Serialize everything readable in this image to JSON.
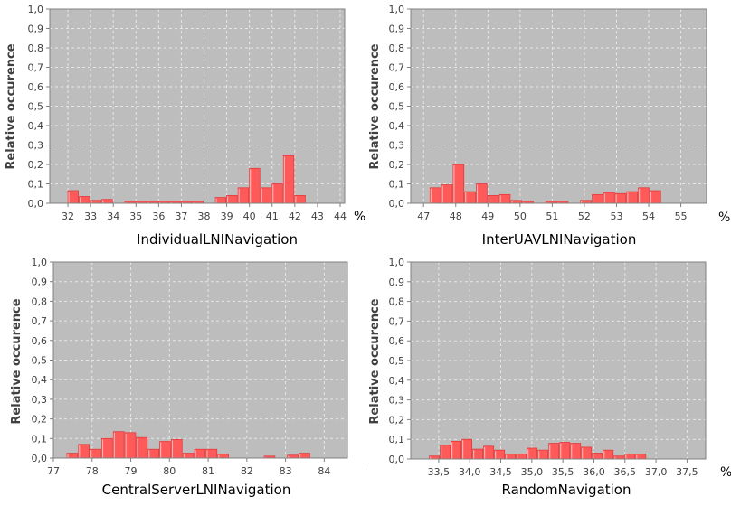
{
  "chart_data": [
    {
      "type": "bar",
      "xlabel": "IndividualLNINavigation",
      "ylabel": "Relative occurence",
      "unit": "%",
      "xlim": [
        31.2,
        44.2
      ],
      "ylim": [
        0,
        1
      ],
      "xticks": [
        "32",
        "33",
        "34",
        "35",
        "36",
        "37",
        "38",
        "39",
        "40",
        "41",
        "42",
        "43",
        "44"
      ],
      "xtick_values": [
        32,
        33,
        34,
        35,
        36,
        37,
        38,
        39,
        40,
        41,
        42,
        43,
        44
      ],
      "yticks": [
        "0,0",
        "0,1",
        "0,2",
        "0,3",
        "0,4",
        "0,5",
        "0,6",
        "0,7",
        "0,8",
        "0,9",
        "1,0"
      ],
      "bin_width": 0.5,
      "bins": [
        {
          "x": 32.0,
          "y": 0.065
        },
        {
          "x": 32.5,
          "y": 0.035
        },
        {
          "x": 33.0,
          "y": 0.015
        },
        {
          "x": 33.5,
          "y": 0.02
        },
        {
          "x": 34.5,
          "y": 0.01
        },
        {
          "x": 35.0,
          "y": 0.01
        },
        {
          "x": 35.5,
          "y": 0.01
        },
        {
          "x": 36.0,
          "y": 0.01
        },
        {
          "x": 36.5,
          "y": 0.01
        },
        {
          "x": 37.0,
          "y": 0.01
        },
        {
          "x": 37.5,
          "y": 0.01
        },
        {
          "x": 38.5,
          "y": 0.03
        },
        {
          "x": 39.0,
          "y": 0.04
        },
        {
          "x": 39.5,
          "y": 0.08
        },
        {
          "x": 40.0,
          "y": 0.18
        },
        {
          "x": 40.5,
          "y": 0.08
        },
        {
          "x": 41.0,
          "y": 0.1
        },
        {
          "x": 41.5,
          "y": 0.245
        },
        {
          "x": 42.0,
          "y": 0.04
        }
      ],
      "bar_color": "#ff5a5a",
      "plot_background": "#bdbdbd",
      "grid": true
    },
    {
      "type": "bar",
      "xlabel": "InterUAVLNINavigation",
      "ylabel": "Relative occurence",
      "unit": "%",
      "xlim": [
        46.6,
        55.8
      ],
      "ylim": [
        0,
        1
      ],
      "xticks": [
        "47",
        "48",
        "49",
        "50",
        "51",
        "52",
        "53",
        "54",
        "55"
      ],
      "xtick_values": [
        47,
        48,
        49,
        50,
        51,
        52,
        53,
        54,
        55
      ],
      "yticks": [
        "0,0",
        "0,1",
        "0,2",
        "0,3",
        "0,4",
        "0,5",
        "0,6",
        "0,7",
        "0,8",
        "0,9",
        "1,0"
      ],
      "bin_width": 0.36,
      "bins": [
        {
          "x": 47.2,
          "y": 0.08
        },
        {
          "x": 47.56,
          "y": 0.095
        },
        {
          "x": 47.92,
          "y": 0.2
        },
        {
          "x": 48.28,
          "y": 0.06
        },
        {
          "x": 48.64,
          "y": 0.1
        },
        {
          "x": 49.0,
          "y": 0.04
        },
        {
          "x": 49.36,
          "y": 0.045
        },
        {
          "x": 49.72,
          "y": 0.015
        },
        {
          "x": 50.08,
          "y": 0.01
        },
        {
          "x": 50.8,
          "y": 0.01
        },
        {
          "x": 51.16,
          "y": 0.01
        },
        {
          "x": 51.88,
          "y": 0.015
        },
        {
          "x": 52.24,
          "y": 0.045
        },
        {
          "x": 52.6,
          "y": 0.055
        },
        {
          "x": 52.96,
          "y": 0.05
        },
        {
          "x": 53.32,
          "y": 0.06
        },
        {
          "x": 53.68,
          "y": 0.08
        },
        {
          "x": 54.04,
          "y": 0.065
        }
      ],
      "bar_color": "#ff5a5a",
      "plot_background": "#bdbdbd",
      "grid": true
    },
    {
      "type": "bar",
      "xlabel": "CentralServerLNINavigation",
      "ylabel": "Relative occurence",
      "unit": "%",
      "xlim": [
        77.0,
        84.6
      ],
      "ylim": [
        0,
        1
      ],
      "xticks": [
        "77",
        "78",
        "79",
        "80",
        "81",
        "82",
        "83",
        "84"
      ],
      "xtick_values": [
        77,
        78,
        79,
        80,
        81,
        82,
        83,
        84
      ],
      "yticks": [
        "0,0",
        "0,1",
        "0,2",
        "0,3",
        "0,4",
        "0,5",
        "0,6",
        "0,7",
        "0,8",
        "0,9",
        "1,0"
      ],
      "bin_width": 0.3,
      "bins": [
        {
          "x": 77.35,
          "y": 0.025
        },
        {
          "x": 77.65,
          "y": 0.07
        },
        {
          "x": 77.95,
          "y": 0.045
        },
        {
          "x": 78.25,
          "y": 0.1
        },
        {
          "x": 78.55,
          "y": 0.135
        },
        {
          "x": 78.85,
          "y": 0.13
        },
        {
          "x": 79.15,
          "y": 0.105
        },
        {
          "x": 79.45,
          "y": 0.045
        },
        {
          "x": 79.75,
          "y": 0.085
        },
        {
          "x": 80.05,
          "y": 0.095
        },
        {
          "x": 80.35,
          "y": 0.025
        },
        {
          "x": 80.65,
          "y": 0.045
        },
        {
          "x": 80.95,
          "y": 0.045
        },
        {
          "x": 81.25,
          "y": 0.02
        },
        {
          "x": 82.45,
          "y": 0.01
        },
        {
          "x": 83.05,
          "y": 0.015
        },
        {
          "x": 83.35,
          "y": 0.025
        }
      ],
      "bar_color": "#ff5a5a",
      "plot_background": "#bdbdbd",
      "grid": true
    },
    {
      "type": "bar",
      "xlabel": "RandomNavigation",
      "ylabel": "Relative occurence",
      "unit": "%",
      "xlim": [
        33.05,
        37.8
      ],
      "ylim": [
        0,
        1
      ],
      "xticks": [
        "33,5",
        "34,0",
        "34,5",
        "35,0",
        "35,5",
        "36,0",
        "36,5",
        "37,0",
        "37,5"
      ],
      "xtick_values": [
        33.5,
        34.0,
        34.5,
        35.0,
        35.5,
        36.0,
        36.5,
        37.0,
        37.5
      ],
      "yticks": [
        "0,0",
        "0,1",
        "0,2",
        "0,3",
        "0,4",
        "0,5",
        "0,6",
        "0,7",
        "0,8",
        "0,9",
        "1,0"
      ],
      "bin_width": 0.175,
      "bins": [
        {
          "x": 33.35,
          "y": 0.015
        },
        {
          "x": 33.525,
          "y": 0.07
        },
        {
          "x": 33.7,
          "y": 0.09
        },
        {
          "x": 33.875,
          "y": 0.1
        },
        {
          "x": 34.05,
          "y": 0.05
        },
        {
          "x": 34.225,
          "y": 0.065
        },
        {
          "x": 34.4,
          "y": 0.045
        },
        {
          "x": 34.575,
          "y": 0.025
        },
        {
          "x": 34.75,
          "y": 0.025
        },
        {
          "x": 34.925,
          "y": 0.055
        },
        {
          "x": 35.1,
          "y": 0.045
        },
        {
          "x": 35.275,
          "y": 0.08
        },
        {
          "x": 35.45,
          "y": 0.085
        },
        {
          "x": 35.625,
          "y": 0.08
        },
        {
          "x": 35.8,
          "y": 0.06
        },
        {
          "x": 35.975,
          "y": 0.03
        },
        {
          "x": 36.15,
          "y": 0.045
        },
        {
          "x": 36.325,
          "y": 0.015
        },
        {
          "x": 36.5,
          "y": 0.025
        },
        {
          "x": 36.675,
          "y": 0.025
        }
      ],
      "bar_color": "#ff5a5a",
      "plot_background": "#bdbdbd",
      "grid": true
    }
  ]
}
